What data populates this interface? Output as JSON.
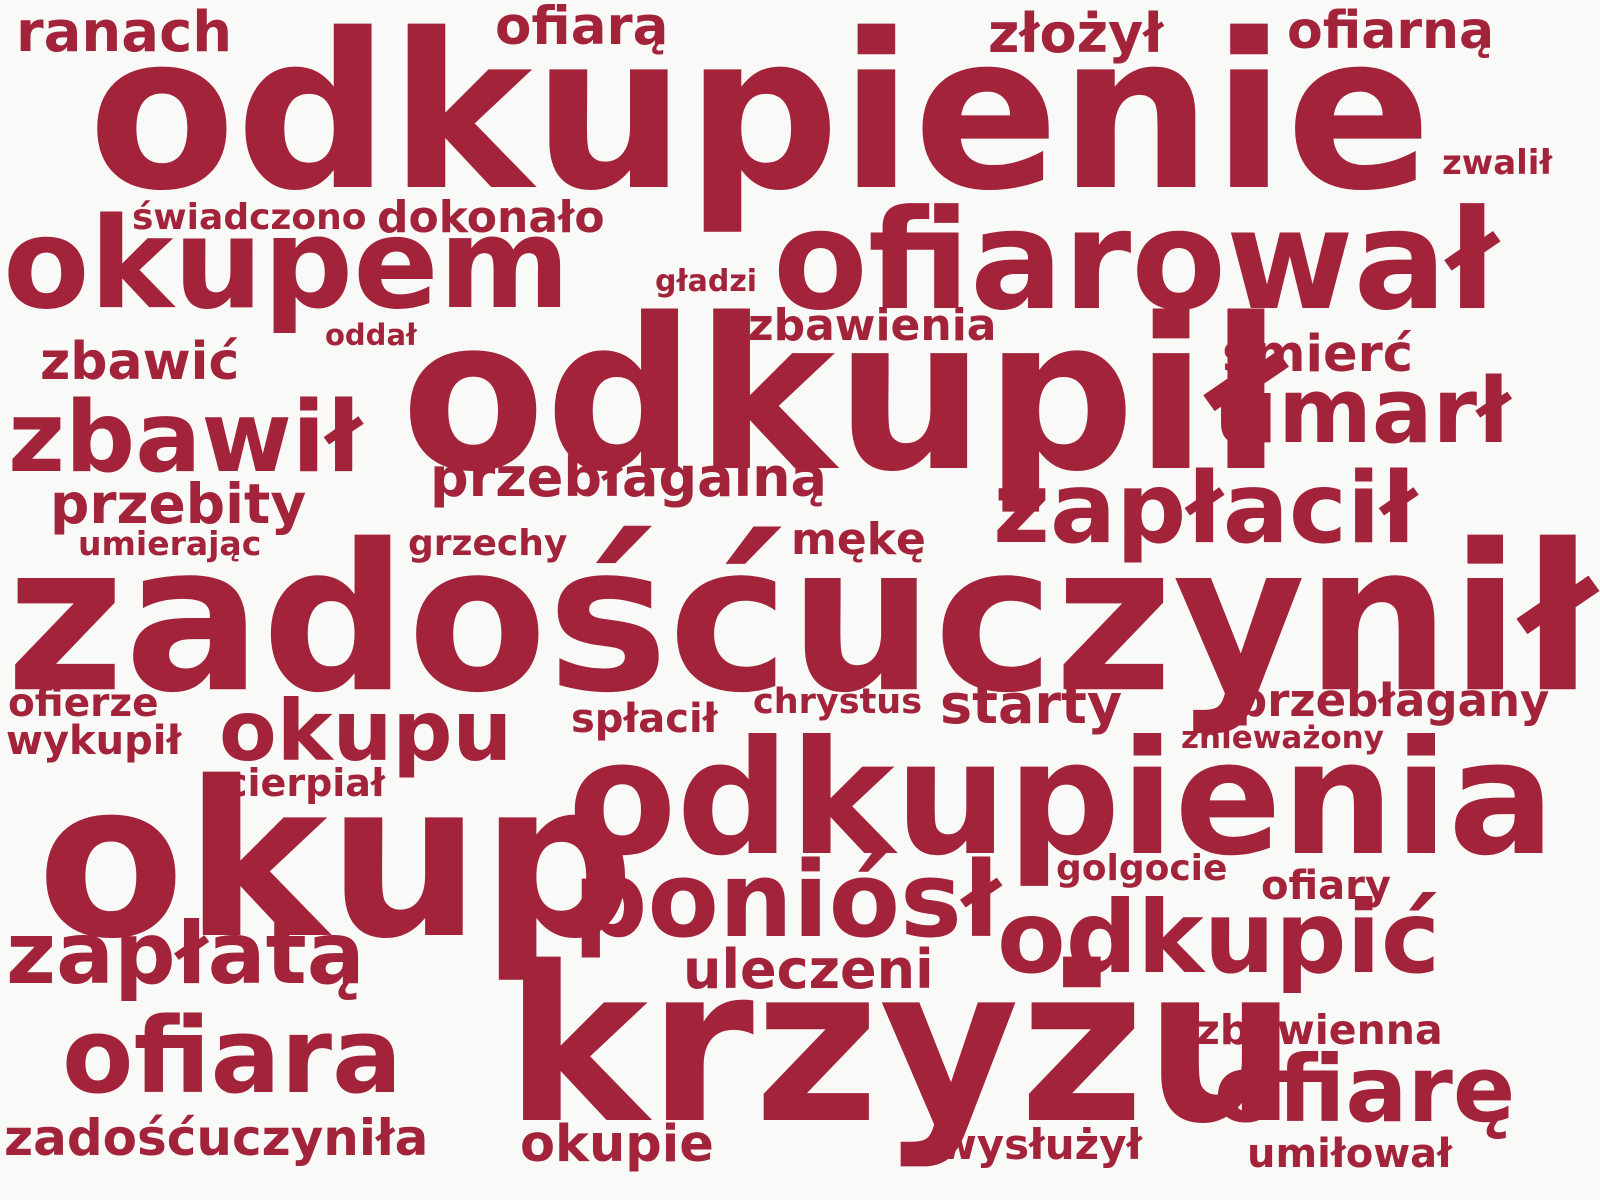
{
  "theme": {
    "word_color": "#a3233a",
    "background": "#f9f9f7"
  },
  "words": [
    "odkupienie",
    "ofiarował",
    "odkupił",
    "zadośćuczynił",
    "okup",
    "odkupienia",
    "krzyżu",
    "okupem",
    "zbawił",
    "zapłacił",
    "umarł",
    "poniósł",
    "odkupić",
    "okupu",
    "ofiara",
    "zapłatą",
    "ofiarę",
    "przebłagalną",
    "przebity",
    "śmierć",
    "ofiarą",
    "ofiarną",
    "złożył",
    "ranach",
    "zbawić",
    "zbawienia",
    "dokonało",
    "świadczono",
    "starty",
    "przebłagany",
    "uleczeni",
    "zadośćuczyniła",
    "okupie",
    "zbawienna",
    "wysłużył",
    "umiłował",
    "mękę",
    "grzechy",
    "umierając",
    "oddał",
    "gładzi",
    "zwalił",
    "ofierze",
    "wykupił",
    "spłacił",
    "chrystus",
    "znieważony",
    "cierpiał",
    "golgocie",
    "ofiary"
  ]
}
